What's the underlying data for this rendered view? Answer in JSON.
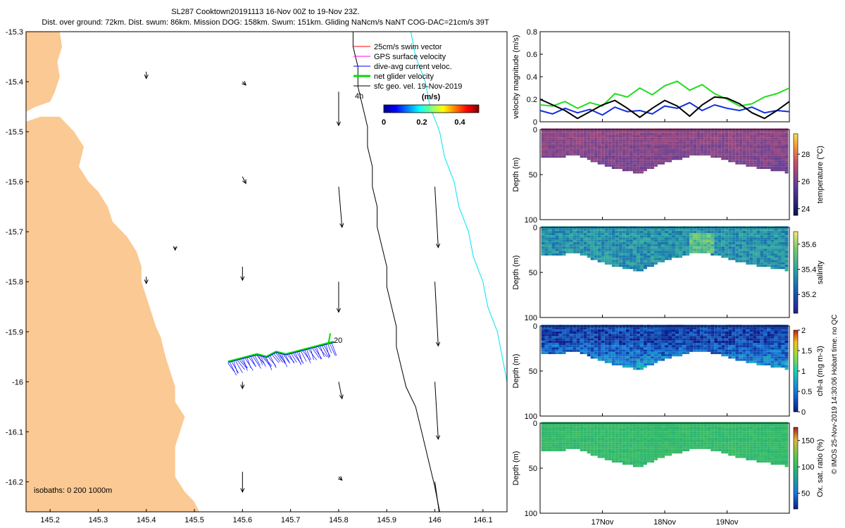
{
  "header": {
    "line1": "SL287 Cooktown20191113 16-Nov 00Z to 19-Nov 23Z.",
    "line2": "Dist. over ground: 72km. Dist. swum: 86km. Mission DOG: 158km. Swum: 151km. Gliding NaNcm/s NaNT COG-DAC=21cm/s 39T"
  },
  "watermark": "© IMOS 25-Nov-2019 14:30:06 Hobart time. no QC",
  "colors": {
    "land": "#fbc993",
    "isobath200": "#000000",
    "isobath1000": "#00e5f0",
    "swim": "#ff0000",
    "gps": "#ff00ff",
    "dac": "#0000ff",
    "net": "#00dd00",
    "sfc": "#000000",
    "series_net": "#22dd22",
    "series_dac": "#1030e0",
    "series_geo": "#000000"
  },
  "map": {
    "isobath_label": "isobaths: 0   200  1000m",
    "legend": [
      {
        "key": "swim",
        "label": "25cm/s swim vector"
      },
      {
        "key": "gps",
        "label": "GPS surface velocity"
      },
      {
        "key": "dac",
        "label": "dive-avg current veloc."
      },
      {
        "key": "net",
        "label": "net glider velocity"
      },
      {
        "key": "sfc",
        "label": "sfc geo. vel. 19-Nov-2019"
      }
    ],
    "legend_4h": "4h",
    "colorbar": {
      "title": "(m/s)",
      "ticks": [
        "0",
        "0.2",
        "0.4"
      ],
      "range": [
        0,
        0.5
      ]
    },
    "track_end_label": "20"
  },
  "chart_data": [
    {
      "type": "map",
      "title": "SL287 Cooktown20191113 track",
      "xlim": [
        145.15,
        146.15
      ],
      "ylim": [
        -16.26,
        -15.3
      ],
      "xticks": [
        145.2,
        145.3,
        145.4,
        145.5,
        145.6,
        145.7,
        145.8,
        145.9,
        146,
        146.1
      ],
      "xtick_labels": [
        "145.2",
        "145.3",
        "145.4",
        "145.5",
        "145.6",
        "145.7",
        "145.8",
        "145.9",
        "146",
        "146.1"
      ],
      "yticks": [
        -15.3,
        -15.4,
        -15.5,
        -15.6,
        -15.7,
        -15.8,
        -15.9,
        -16.0,
        -16.1,
        -16.2
      ],
      "ytick_labels": [
        "-15.3",
        "-15.4",
        "-15.5",
        "-15.6",
        "-15.7",
        "-15.8",
        "-15.9",
        "-16",
        "-16.1",
        "-16.2"
      ],
      "coastline": [
        [
          145.15,
          -15.3
        ],
        [
          145.22,
          -15.3
        ],
        [
          145.225,
          -15.33
        ],
        [
          145.215,
          -15.36
        ],
        [
          145.22,
          -15.39
        ],
        [
          145.21,
          -15.42
        ],
        [
          145.2,
          -15.44
        ],
        [
          145.17,
          -15.45
        ],
        [
          145.15,
          -15.46
        ],
        [
          145.15,
          -15.48
        ],
        [
          145.18,
          -15.47
        ],
        [
          145.22,
          -15.47
        ],
        [
          145.25,
          -15.5
        ],
        [
          145.27,
          -15.53
        ],
        [
          145.26,
          -15.57
        ],
        [
          145.28,
          -15.6
        ],
        [
          145.3,
          -15.62
        ],
        [
          145.32,
          -15.65
        ],
        [
          145.33,
          -15.68
        ],
        [
          145.36,
          -15.71
        ],
        [
          145.38,
          -15.74
        ],
        [
          145.39,
          -15.77
        ],
        [
          145.39,
          -15.8
        ],
        [
          145.4,
          -15.83
        ],
        [
          145.41,
          -15.86
        ],
        [
          145.42,
          -15.89
        ],
        [
          145.43,
          -15.91
        ],
        [
          145.44,
          -15.95
        ],
        [
          145.45,
          -15.98
        ],
        [
          145.46,
          -16.01
        ],
        [
          145.46,
          -16.04
        ],
        [
          145.48,
          -16.07
        ],
        [
          145.47,
          -16.1
        ],
        [
          145.46,
          -16.13
        ],
        [
          145.46,
          -16.16
        ],
        [
          145.46,
          -16.19
        ],
        [
          145.48,
          -16.22
        ],
        [
          145.5,
          -16.24
        ],
        [
          145.51,
          -16.26
        ],
        [
          145.15,
          -16.26
        ]
      ],
      "isobath_200": [
        [
          145.83,
          -15.3
        ],
        [
          145.83,
          -15.33
        ],
        [
          145.84,
          -15.37
        ],
        [
          145.84,
          -15.41
        ],
        [
          145.85,
          -15.45
        ],
        [
          145.86,
          -15.49
        ],
        [
          145.86,
          -15.53
        ],
        [
          145.87,
          -15.57
        ],
        [
          145.87,
          -15.61
        ],
        [
          145.88,
          -15.65
        ],
        [
          145.88,
          -15.69
        ],
        [
          145.89,
          -15.73
        ],
        [
          145.9,
          -15.77
        ],
        [
          145.9,
          -15.81
        ],
        [
          145.91,
          -15.85
        ],
        [
          145.92,
          -15.89
        ],
        [
          145.92,
          -15.93
        ],
        [
          145.93,
          -15.97
        ],
        [
          145.94,
          -16.01
        ],
        [
          145.96,
          -16.05
        ],
        [
          145.97,
          -16.09
        ],
        [
          145.98,
          -16.13
        ],
        [
          145.99,
          -16.17
        ],
        [
          146,
          -16.21
        ],
        [
          146.01,
          -16.26
        ]
      ],
      "isobath_1000": [
        [
          145.95,
          -15.3
        ],
        [
          145.96,
          -15.35
        ],
        [
          145.98,
          -15.4
        ],
        [
          145.99,
          -15.45
        ],
        [
          146.01,
          -15.5
        ],
        [
          146.02,
          -15.55
        ],
        [
          146.04,
          -15.6
        ],
        [
          146.05,
          -15.65
        ],
        [
          146.07,
          -15.7
        ],
        [
          146.08,
          -15.75
        ],
        [
          146.1,
          -15.8
        ],
        [
          146.11,
          -15.85
        ],
        [
          146.13,
          -15.9
        ],
        [
          146.14,
          -15.95
        ],
        [
          146.15,
          -16.0
        ]
      ],
      "track": [
        [
          145.57,
          -15.96
        ],
        [
          145.59,
          -15.955
        ],
        [
          145.61,
          -15.95
        ],
        [
          145.63,
          -15.945
        ],
        [
          145.65,
          -15.95
        ],
        [
          145.67,
          -15.94
        ],
        [
          145.69,
          -15.945
        ],
        [
          145.71,
          -15.94
        ],
        [
          145.73,
          -15.935
        ],
        [
          145.75,
          -15.93
        ],
        [
          145.77,
          -15.925
        ],
        [
          145.79,
          -15.92
        ]
      ],
      "current_vectors": [
        {
          "lon": 145.4,
          "lat": -15.38,
          "u": 0.0,
          "v": -0.02
        },
        {
          "lon": 145.6,
          "lat": -15.4,
          "u": 0.01,
          "v": -0.01
        },
        {
          "lon": 145.8,
          "lat": -15.42,
          "u": 0.0,
          "v": -0.1
        },
        {
          "lon": 145.6,
          "lat": -15.59,
          "u": 0.01,
          "v": -0.02
        },
        {
          "lon": 145.8,
          "lat": -15.61,
          "u": 0.01,
          "v": -0.12
        },
        {
          "lon": 146.0,
          "lat": -15.61,
          "u": 0.01,
          "v": -0.18
        },
        {
          "lon": 145.46,
          "lat": -15.73,
          "u": 0.0,
          "v": -0.01
        },
        {
          "lon": 145.4,
          "lat": -15.79,
          "u": 0.0,
          "v": -0.02
        },
        {
          "lon": 145.6,
          "lat": -15.77,
          "u": 0.0,
          "v": -0.04
        },
        {
          "lon": 145.8,
          "lat": -15.8,
          "u": 0.0,
          "v": -0.09
        },
        {
          "lon": 146.0,
          "lat": -15.8,
          "u": 0.01,
          "v": -0.19
        },
        {
          "lon": 145.6,
          "lat": -16.0,
          "u": 0.0,
          "v": -0.02
        },
        {
          "lon": 145.8,
          "lat": -16.0,
          "u": 0.01,
          "v": -0.05
        },
        {
          "lon": 146.0,
          "lat": -16.0,
          "u": 0.01,
          "v": -0.17
        },
        {
          "lon": 145.6,
          "lat": -16.18,
          "u": 0.0,
          "v": -0.06
        },
        {
          "lon": 145.8,
          "lat": -16.19,
          "u": 0.01,
          "v": -0.01
        },
        {
          "lon": 146.0,
          "lat": -16.2,
          "u": 0.02,
          "v": -0.14
        }
      ]
    },
    {
      "type": "line",
      "xlim": [
        16.0,
        20.0
      ],
      "ylim": [
        0,
        0.8
      ],
      "yticks": [
        0,
        0.2,
        0.4,
        0.6,
        0.8
      ],
      "ytick_labels": [
        "0",
        "0.2",
        "0.4",
        "0.6",
        "0.8"
      ],
      "ylabel": "velocity magnitude (m/s)",
      "x": [
        16.0,
        16.2,
        16.4,
        16.6,
        16.8,
        17.0,
        17.2,
        17.4,
        17.6,
        17.8,
        18.0,
        18.2,
        18.4,
        18.6,
        18.8,
        19.0,
        19.2,
        19.4,
        19.6,
        19.8,
        20.0
      ],
      "series": [
        {
          "name": "net glider velocity",
          "color_key": "series_net",
          "values": [
            0.15,
            0.14,
            0.18,
            0.12,
            0.17,
            0.14,
            0.25,
            0.22,
            0.3,
            0.24,
            0.32,
            0.36,
            0.28,
            0.33,
            0.25,
            0.2,
            0.14,
            0.16,
            0.22,
            0.25,
            0.3
          ]
        },
        {
          "name": "dive-avg current veloc.",
          "color_key": "series_dac",
          "values": [
            0.1,
            0.07,
            0.12,
            0.08,
            0.11,
            0.06,
            0.13,
            0.09,
            0.1,
            0.07,
            0.14,
            0.12,
            0.17,
            0.1,
            0.15,
            0.12,
            0.1,
            0.13,
            0.08,
            0.1,
            0.09
          ]
        },
        {
          "name": "sfc geo. vel.",
          "color_key": "series_geo",
          "values": [
            0.2,
            0.15,
            0.1,
            0.03,
            0.09,
            0.15,
            0.19,
            0.12,
            0.04,
            0.12,
            0.19,
            0.14,
            0.05,
            0.15,
            0.22,
            0.21,
            0.16,
            0.08,
            0.03,
            0.1,
            0.18
          ]
        }
      ]
    },
    {
      "type": "heatmap",
      "variable": "temperature",
      "clabel": "temperature (°C)",
      "ylabel": "Depth (m)",
      "ylim": [
        100,
        0
      ],
      "yticks": [
        0,
        50,
        100
      ],
      "clim": [
        23.5,
        29.5
      ],
      "cticks": [
        24,
        26,
        28
      ],
      "base": 26.5,
      "variation": 0.4,
      "bottom_depth_m": [
        30,
        32,
        28,
        35,
        42,
        45,
        50,
        40,
        35,
        30,
        28,
        33,
        38,
        42,
        45,
        48
      ]
    },
    {
      "type": "heatmap",
      "variable": "salinity",
      "clabel": "salinity",
      "ylabel": "Depth (m)",
      "ylim": [
        100,
        0
      ],
      "yticks": [
        0,
        50,
        100
      ],
      "clim": [
        35.05,
        35.7
      ],
      "cticks": [
        35.2,
        35.4,
        35.6
      ],
      "base": 35.35,
      "variation": 0.08,
      "bottom_depth_m": [
        30,
        32,
        28,
        35,
        42,
        45,
        50,
        40,
        35,
        30,
        28,
        33,
        38,
        42,
        45,
        48
      ]
    },
    {
      "type": "heatmap",
      "variable": "chl-a",
      "clabel": "chl-a (mg m-3)",
      "ylabel": "Depth (m)",
      "ylim": [
        100,
        0
      ],
      "yticks": [
        0,
        50,
        100
      ],
      "clim": [
        0,
        2
      ],
      "cticks": [
        0,
        0.5,
        1,
        1.5,
        2
      ],
      "base": 0.2,
      "variation": 0.25,
      "bottom_depth_m": [
        30,
        32,
        28,
        35,
        42,
        45,
        50,
        40,
        35,
        30,
        28,
        33,
        38,
        42,
        45,
        48
      ]
    },
    {
      "type": "heatmap",
      "variable": "oxygen",
      "clabel": "Ox. sat. ratio (%)",
      "ylabel": "Depth (m)",
      "ylim": [
        100,
        0
      ],
      "yticks": [
        0,
        50,
        100
      ],
      "clim": [
        20,
        175
      ],
      "cticks": [
        50,
        100,
        150
      ],
      "base": 100,
      "variation": 6,
      "bottom_depth_m": [
        30,
        32,
        28,
        35,
        42,
        45,
        50,
        40,
        35,
        30,
        28,
        33,
        38,
        42,
        45,
        48
      ]
    }
  ],
  "time_axis": {
    "xlim": [
      16.0,
      20.0
    ],
    "ticks": [
      17,
      18,
      19
    ],
    "labels": [
      "17Nov",
      "18Nov",
      "19Nov"
    ]
  }
}
